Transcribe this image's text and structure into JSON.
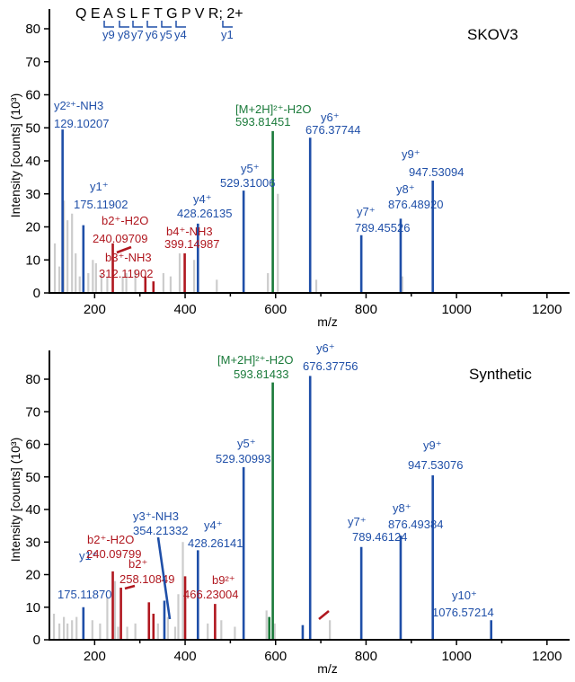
{
  "chart_data": [
    {
      "type": "bar",
      "title": "SKOV3",
      "xlabel": "m/z",
      "ylabel": "Intensity [counts] (10³)",
      "xlim": [
        100,
        1250
      ],
      "ylim": [
        0,
        85
      ],
      "x_ticks": [
        200,
        400,
        600,
        800,
        1000,
        1200
      ],
      "y_ticks": [
        0,
        10,
        20,
        30,
        40,
        50,
        60,
        70,
        80
      ],
      "sequence": {
        "text": "Q E A S L F T G P V R; 2+",
        "b_ions": [],
        "y_ions": [
          "y9",
          "y8",
          "y7",
          "y6",
          "y5",
          "y4",
          "y1"
        ]
      },
      "series": [
        {
          "name": "y",
          "color": "#1f4fa8",
          "points": [
            [
              129.1,
              49.5
            ],
            [
              175.1,
              20.5
            ],
            [
              428.3,
              21
            ],
            [
              529.3,
              31
            ],
            [
              676.4,
              47
            ],
            [
              789.5,
              17.5
            ],
            [
              876.5,
              22.5
            ],
            [
              947.5,
              34
            ]
          ]
        },
        {
          "name": "b",
          "color": "#b0171f",
          "points": [
            [
              240.1,
              15
            ],
            [
              312.1,
              5
            ],
            [
              330.0,
              3.5
            ],
            [
              399.1,
              12
            ]
          ]
        },
        {
          "name": "precursor",
          "color": "#1a7a3a",
          "points": [
            [
              593.8,
              49
            ]
          ]
        },
        {
          "name": "unassigned",
          "color": "#cccccc",
          "points": [
            [
              112,
              15
            ],
            [
              122,
              8
            ],
            [
              132,
              28
            ],
            [
              140,
              22
            ],
            [
              150,
              24
            ],
            [
              158,
              12
            ],
            [
              167,
              5
            ],
            [
              186,
              6
            ],
            [
              196,
              10
            ],
            [
              203,
              9
            ],
            [
              215,
              6
            ],
            [
              228,
              5
            ],
            [
              262,
              5
            ],
            [
              270,
              6
            ],
            [
              290,
              7
            ],
            [
              352,
              6
            ],
            [
              368,
              5
            ],
            [
              388,
              12
            ],
            [
              420,
              10
            ],
            [
              470,
              4
            ],
            [
              583,
              6
            ],
            [
              605,
              30
            ],
            [
              690,
              4
            ],
            [
              880,
              5
            ]
          ]
        }
      ],
      "annotations": [
        {
          "label": "y2²⁺-NH3",
          "mz": "129.10207",
          "color": "#1f4fa8"
        },
        {
          "label": "y1⁺",
          "mz": "175.11902",
          "color": "#1f4fa8"
        },
        {
          "label": "b2⁺-H2O",
          "mz": "240.09709",
          "color": "#b0171f"
        },
        {
          "label": "b3⁺-NH3",
          "mz": "312.11902",
          "color": "#b0171f"
        },
        {
          "label": "b4⁺-NH3",
          "mz": "399.14987",
          "color": "#b0171f"
        },
        {
          "label": "y4⁺",
          "mz": "428.26135",
          "color": "#1f4fa8"
        },
        {
          "label": "y5⁺",
          "mz": "529.31006",
          "color": "#1f4fa8"
        },
        {
          "label": "[M+2H]²⁺-H2O",
          "mz": "593.81451",
          "color": "#1a7a3a"
        },
        {
          "label": "y6⁺",
          "mz": "676.37744",
          "color": "#1f4fa8"
        },
        {
          "label": "y7⁺",
          "mz": "789.45526",
          "color": "#1f4fa8"
        },
        {
          "label": "y8⁺",
          "mz": "876.48920",
          "color": "#1f4fa8"
        },
        {
          "label": "y9⁺",
          "mz": "947.53094",
          "color": "#1f4fa8"
        }
      ]
    },
    {
      "type": "bar",
      "title": "Synthetic",
      "xlabel": "m/z",
      "ylabel": "Intensity [counts] (10³)",
      "xlim": [
        100,
        1250
      ],
      "ylim": [
        0,
        88
      ],
      "x_ticks": [
        200,
        400,
        600,
        800,
        1000,
        1200
      ],
      "y_ticks": [
        0,
        10,
        20,
        30,
        40,
        50,
        60,
        70,
        80
      ],
      "series": [
        {
          "name": "y",
          "color": "#1f4fa8",
          "points": [
            [
              175.1,
              10
            ],
            [
              354.2,
              12
            ],
            [
              428.3,
              27.5
            ],
            [
              529.3,
              53
            ],
            [
              660.0,
              4.5
            ],
            [
              676.4,
              81
            ],
            [
              789.5,
              28.5
            ],
            [
              876.5,
              32
            ],
            [
              947.5,
              50.5
            ],
            [
              1076.6,
              6
            ]
          ]
        },
        {
          "name": "b",
          "color": "#b0171f",
          "points": [
            [
              240.1,
              21
            ],
            [
              258.1,
              16
            ],
            [
              320.0,
              11.5
            ],
            [
              330.0,
              8
            ],
            [
              400.0,
              19.5
            ],
            [
              466.2,
              11
            ]
          ]
        },
        {
          "name": "precursor",
          "color": "#1a7a3a",
          "points": [
            [
              586.0,
              7
            ],
            [
              593.8,
              79
            ]
          ]
        },
        {
          "name": "unassigned",
          "color": "#cccccc",
          "points": [
            [
              110,
              8
            ],
            [
              122,
              5
            ],
            [
              132,
              7
            ],
            [
              140,
              5
            ],
            [
              150,
              6
            ],
            [
              160,
              7
            ],
            [
              195,
              6
            ],
            [
              212,
              5
            ],
            [
              228,
              13
            ],
            [
              245,
              18
            ],
            [
              252,
              4
            ],
            [
              272,
              4
            ],
            [
              290,
              5
            ],
            [
              340,
              5
            ],
            [
              362,
              7
            ],
            [
              378,
              4
            ],
            [
              385,
              14
            ],
            [
              395,
              30
            ],
            [
              450,
              5
            ],
            [
              480,
              6
            ],
            [
              510,
              4
            ],
            [
              580,
              9
            ],
            [
              598,
              5
            ],
            [
              720,
              6
            ]
          ]
        }
      ],
      "annotations": [
        {
          "label": "y1⁺",
          "mz": "175.11870",
          "color": "#1f4fa8"
        },
        {
          "label": "b2⁺-H2O",
          "mz": "240.09799",
          "color": "#b0171f"
        },
        {
          "label": "b2⁺",
          "mz": "258.10849",
          "color": "#b0171f"
        },
        {
          "label": "y3⁺-NH3",
          "mz": "354.21332",
          "color": "#1f4fa8"
        },
        {
          "label": "y4⁺",
          "mz": "428.26141",
          "color": "#1f4fa8"
        },
        {
          "label": "b9²⁺",
          "mz": "466.23004",
          "color": "#b0171f"
        },
        {
          "label": "y5⁺",
          "mz": "529.30993",
          "color": "#1f4fa8"
        },
        {
          "label": "[M+2H]²⁺-H2O",
          "mz": "593.81433",
          "color": "#1a7a3a"
        },
        {
          "label": "y6⁺",
          "mz": "676.37756",
          "color": "#1f4fa8"
        },
        {
          "label": "y7⁺",
          "mz": "789.46124",
          "color": "#1f4fa8"
        },
        {
          "label": "y8⁺",
          "mz": "876.49384",
          "color": "#1f4fa8"
        },
        {
          "label": "y9⁺",
          "mz": "947.53076",
          "color": "#1f4fa8"
        },
        {
          "label": "y10⁺",
          "mz": "1076.57214",
          "color": "#1f4fa8"
        }
      ]
    }
  ]
}
